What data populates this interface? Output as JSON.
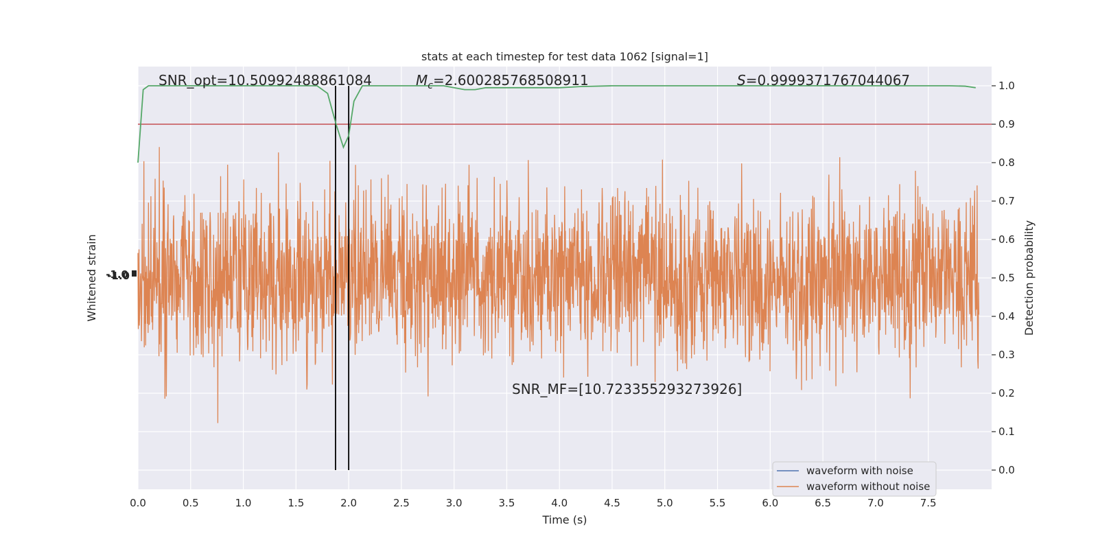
{
  "chart_data": {
    "type": "line",
    "title": "stats at each timestep for test data 1062 [signal=1]",
    "xlabel": "Time (s)",
    "ylabel_left": "Whitened strain",
    "ylabel_right": "Detection probability",
    "xlim": [
      0.0,
      8.0
    ],
    "ylim_right": [
      -0.05,
      1.05
    ],
    "xticks": [
      "0.0",
      "0.5",
      "1.0",
      "1.5",
      "2.0",
      "2.5",
      "3.0",
      "3.5",
      "4.0",
      "4.5",
      "5.0",
      "5.5",
      "6.0",
      "6.5",
      "7.0",
      "7.5"
    ],
    "yticks_right": [
      "0.0",
      "0.1",
      "0.2",
      "0.3",
      "0.4",
      "0.5",
      "0.6",
      "0.7",
      "0.8",
      "0.9",
      "1.0"
    ],
    "left_tick_labels_overlapping": "-1.0",
    "grid": true,
    "legend_position": "lower-right",
    "annotations": {
      "snr_opt": "SNR_opt=10.50992488861084",
      "mc": "=2.600285768508911",
      "mc_symbol": "M",
      "mc_subscript": "c",
      "s": "=0.9999371767044067",
      "s_symbol": "S",
      "snr_mf": "SNR_MF=[10.723355293273926]"
    },
    "threshold": 0.9,
    "markers_x": [
      1.875,
      2.0
    ],
    "series": [
      {
        "name": "waveform with noise",
        "color": "#4c72b0",
        "amplitude": 0.0
      },
      {
        "name": "waveform without noise",
        "color": "#dd8452",
        "amplitude": 1.0
      },
      {
        "color": "#55a868",
        "x": [
          0.0,
          0.05,
          0.1,
          0.2,
          0.5,
          1.0,
          1.5,
          1.7,
          1.8,
          1.88,
          1.95,
          2.0,
          2.05,
          2.13,
          2.2,
          2.5,
          2.9,
          3.1,
          3.2,
          3.3,
          4.0,
          4.2,
          4.5,
          5.0,
          6.0,
          7.0,
          7.5,
          7.7,
          7.85,
          7.95
        ],
        "y": [
          0.8,
          0.99,
          1.0,
          1.0,
          1.0,
          1.0,
          1.0,
          1.0,
          0.98,
          0.9,
          0.84,
          0.87,
          0.96,
          1.0,
          1.0,
          1.0,
          1.0,
          0.99,
          0.99,
          0.995,
          0.995,
          0.998,
          1.0,
          1.0,
          1.0,
          1.0,
          1.0,
          1.0,
          0.999,
          0.995
        ]
      }
    ],
    "threshold_color": "#c44e52"
  }
}
